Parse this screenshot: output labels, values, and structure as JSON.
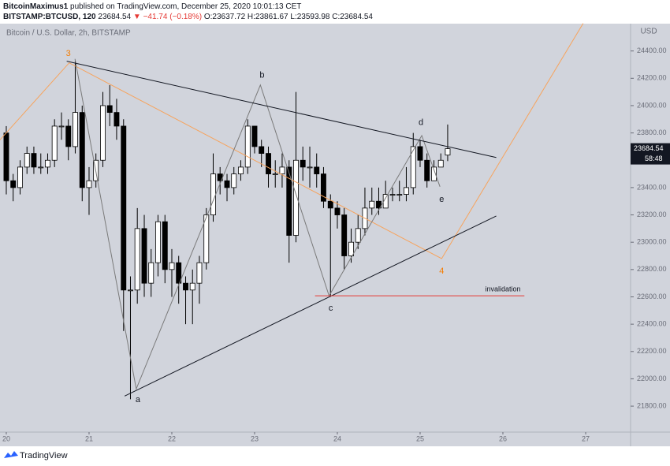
{
  "header": {
    "author": "BitcoinMaximus1",
    "published": "published on TradingView.com, December 25, 2020 10:01:13 CET",
    "symbol": "BITSTAMP:BTCUSD, 120",
    "last": "23684.54",
    "change": "▼ −41.74 (−0.18%)",
    "o": "O:23637.72",
    "h": "H:23861.67",
    "l": "L:23593.98",
    "c": "C:23684.54"
  },
  "footer": "TradingView",
  "chart_data": {
    "type": "candlestick",
    "title": "Bitcoin / U.S. Dollar, 2h, BITSTAMP",
    "y_unit": "USD",
    "countdown": "58:48",
    "up_color": "#ffffff",
    "down_color": "#000000",
    "grid": false,
    "x": [
      20,
      20.083,
      20.167,
      20.25,
      20.333,
      20.417,
      20.5,
      20.583,
      20.667,
      20.75,
      20.833,
      20.917,
      21,
      21.083,
      21.167,
      21.25,
      21.333,
      21.417,
      21.5,
      21.583,
      21.667,
      21.75,
      21.833,
      21.917,
      22,
      22.083,
      22.167,
      22.25,
      22.333,
      22.417,
      22.5,
      22.583,
      22.667,
      22.75,
      22.833,
      22.917,
      23,
      23.083,
      23.167,
      23.25,
      23.333,
      23.417,
      23.5,
      23.583,
      23.667,
      23.75,
      23.833,
      23.917,
      24,
      24.083,
      24.167,
      24.25,
      24.333,
      24.417,
      24.5,
      24.583,
      24.667,
      24.75,
      24.833,
      24.917,
      25,
      25.083,
      25.167,
      25.25,
      25.333
    ],
    "open": [
      23800,
      23450,
      23400,
      23550,
      23650,
      23550,
      23550,
      23600,
      23850,
      23850,
      23700,
      23950,
      23400,
      23450,
      23600,
      24000,
      23950,
      23850,
      22650,
      22650,
      23100,
      22700,
      22850,
      23150,
      22800,
      22850,
      22700,
      22650,
      22700,
      22850,
      23200,
      23500,
      23450,
      23400,
      23500,
      23550,
      23850,
      23700,
      23650,
      23500,
      23500,
      23550,
      23050,
      23600,
      23550,
      23550,
      23500,
      23300,
      23250,
      23200,
      22900,
      23000,
      23100,
      23250,
      23300,
      23250,
      23350,
      23350,
      23350,
      23400,
      23700,
      23600,
      23450,
      23550,
      23637.72
    ],
    "high": [
      23850,
      23500,
      23600,
      23700,
      23700,
      23650,
      23650,
      23900,
      23950,
      23900,
      24330,
      24000,
      23550,
      23650,
      24100,
      24150,
      24050,
      23900,
      22750,
      23250,
      23200,
      22950,
      23200,
      23200,
      22950,
      22900,
      22750,
      22800,
      22900,
      23250,
      23650,
      23550,
      23500,
      23550,
      23600,
      23900,
      23850,
      23750,
      23700,
      23600,
      23650,
      23600,
      24100,
      23700,
      23700,
      23650,
      23550,
      23350,
      23300,
      23250,
      23100,
      23200,
      23400,
      23400,
      23400,
      23450,
      23400,
      23450,
      23550,
      23800,
      23750,
      23650,
      23600,
      23650,
      23861.67
    ],
    "low": [
      23350,
      23300,
      23350,
      23500,
      23500,
      23500,
      23500,
      23550,
      23750,
      23600,
      23650,
      23300,
      23200,
      23400,
      23550,
      23850,
      23750,
      22350,
      21850,
      22550,
      22600,
      22600,
      22750,
      22700,
      22600,
      22550,
      22400,
      22400,
      22550,
      22800,
      23150,
      23350,
      23300,
      23350,
      23450,
      23500,
      23650,
      23550,
      23400,
      23400,
      23400,
      22850,
      23000,
      23450,
      23400,
      23400,
      23250,
      22600,
      23100,
      22800,
      22850,
      22950,
      23050,
      23200,
      23200,
      23250,
      23300,
      23300,
      23300,
      23350,
      23550,
      23400,
      23450,
      23550,
      23593.98
    ],
    "close": [
      23450,
      23400,
      23550,
      23650,
      23550,
      23550,
      23600,
      23850,
      23850,
      23700,
      23950,
      23400,
      23450,
      23600,
      24000,
      23950,
      23850,
      22650,
      22650,
      23100,
      22700,
      22850,
      23150,
      22800,
      22850,
      22700,
      22650,
      22700,
      22850,
      23200,
      23500,
      23450,
      23400,
      23500,
      23550,
      23850,
      23700,
      23650,
      23500,
      23500,
      23550,
      23050,
      23600,
      23550,
      23550,
      23500,
      23300,
      23250,
      23200,
      22900,
      23000,
      23100,
      23250,
      23300,
      23250,
      23350,
      23350,
      23350,
      23400,
      23700,
      23600,
      23450,
      23550,
      23600,
      23684.54
    ],
    "xlim": [
      19.924,
      27.543
    ],
    "ylim": [
      21610,
      24600
    ],
    "xticks": [
      20,
      21,
      22,
      23,
      24,
      25,
      26,
      27
    ],
    "yticks": [
      {
        "value": 21800,
        "label": "21800.00"
      },
      {
        "value": 22000,
        "label": "22000.00"
      },
      {
        "value": 22200,
        "label": "22200.00"
      },
      {
        "value": 22400,
        "label": "22400.00"
      },
      {
        "value": 22600,
        "label": "22600.00"
      },
      {
        "value": 22800,
        "label": "22800.00"
      },
      {
        "value": 23000,
        "label": "23000.00"
      },
      {
        "value": 23200,
        "label": "23200.00"
      },
      {
        "value": 23400,
        "label": "23400.00"
      },
      {
        "value": 23600,
        "label": "23600.00"
      },
      {
        "value": 23800,
        "label": "23800.00"
      },
      {
        "value": 24000,
        "label": "24000.00"
      },
      {
        "value": 24200,
        "label": "24200.00"
      },
      {
        "value": 24400,
        "label": "24400.00"
      }
    ],
    "drawings": [
      {
        "color": "#f7a35c",
        "x": [
          19.92,
          20.76,
          25.26,
          26.97
        ],
        "y": [
          23747,
          24313,
          22880,
          24602
        ]
      },
      {
        "color": "#7a7a7a",
        "x": [
          20.83,
          21.57,
          23.07,
          23.9,
          25.02,
          25.24
        ],
        "y": [
          24342,
          21926,
          24151,
          22608,
          23781,
          23406
        ]
      },
      {
        "color": "#131722",
        "x": [
          20.73,
          25.92
        ],
        "y": [
          24325,
          23620
        ]
      },
      {
        "color": "#131722",
        "x": [
          21.43,
          25.92
        ],
        "y": [
          21874,
          23192
        ]
      },
      {
        "color": "#e53935",
        "x": [
          23.73,
          26.26
        ],
        "y": [
          22608,
          22608
        ]
      }
    ],
    "annotations": [
      {
        "text": "3",
        "x": 20.75,
        "y": 24380,
        "color": "#f57c00"
      },
      {
        "text": "b",
        "x": 23.09,
        "y": 24221,
        "color": "#131722"
      },
      {
        "text": "d",
        "x": 25.01,
        "y": 23874,
        "color": "#131722"
      },
      {
        "text": "e",
        "x": 25.26,
        "y": 23313,
        "color": "#131722"
      },
      {
        "text": "c",
        "x": 23.92,
        "y": 22516,
        "color": "#131722"
      },
      {
        "text": "a",
        "x": 21.59,
        "y": 21845,
        "color": "#131722"
      },
      {
        "text": "4",
        "x": 25.26,
        "y": 22787,
        "color": "#f57c00"
      },
      {
        "text": "invalidation",
        "x": 26.0,
        "y": 22654,
        "color": "#131722"
      }
    ]
  }
}
